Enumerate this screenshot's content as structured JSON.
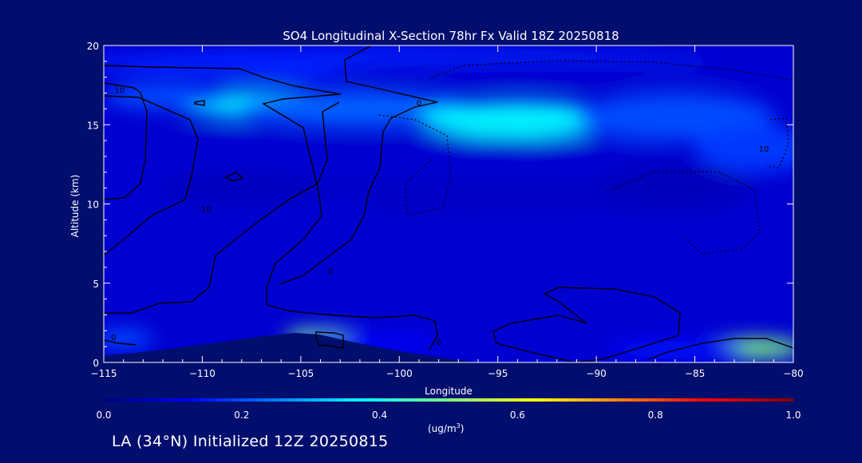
{
  "colors": {
    "background": "#010e6e",
    "contour": "#000000",
    "axis": "#ffffff",
    "colormap": [
      "#00007f",
      "#0000ff",
      "#007fff",
      "#00ffff",
      "#7fff7f",
      "#ffff00",
      "#ff7f00",
      "#ff0000",
      "#7f0000"
    ]
  },
  "footer": {
    "text": "LA (34°N) Initialized 12Z 20250815"
  },
  "chart_data": {
    "type": "heatmap",
    "title": "SO4 Longitudinal X-Section 78hr  Fx Valid 18Z 20250818",
    "xlabel": "Longitude",
    "ylabel": "Altitude (km)",
    "xlim": [
      -115,
      -80
    ],
    "ylim": [
      0,
      20
    ],
    "x_ticks": [
      -115,
      -110,
      -105,
      -100,
      -95,
      -90,
      -85,
      -80
    ],
    "x_tick_labels": [
      "−115",
      "−110",
      "−105",
      "−100",
      "−95",
      "−90",
      "−85",
      "−80"
    ],
    "y_ticks": [
      0,
      5,
      10,
      15,
      20
    ],
    "y_tick_labels": [
      "0",
      "5",
      "10",
      "15",
      "20"
    ],
    "colorbar": {
      "min": 0.0,
      "max": 1.0,
      "ticks": [
        0.0,
        0.2,
        0.4,
        0.6,
        0.8,
        1.0
      ],
      "tick_labels": [
        "0.0",
        "0.2",
        "0.4",
        "0.6",
        "0.8",
        "1.0"
      ],
      "unit_label": "(ug/m",
      "unit_exponent": "3",
      "unit_close": ")"
    },
    "background_value": 0.08,
    "field_blobs": [
      {
        "lon": -100,
        "alt": 18.8,
        "rlon": 16,
        "ralt": 1.0,
        "v": 0.16
      },
      {
        "lon": -92,
        "alt": 18.3,
        "rlon": 12,
        "ralt": 0.7,
        "v": 0.08
      },
      {
        "lon": -107,
        "alt": 16.3,
        "rlon": 4.5,
        "ralt": 0.9,
        "v": 0.34
      },
      {
        "lon": -102,
        "alt": 16.0,
        "rlon": 6,
        "ralt": 1.1,
        "v": 0.22
      },
      {
        "lon": -94,
        "alt": 15.3,
        "rlon": 5,
        "ralt": 1.2,
        "v": 0.36
      },
      {
        "lon": -86,
        "alt": 15.5,
        "rlon": 5,
        "ralt": 1.5,
        "v": 0.2
      },
      {
        "lon": -112,
        "alt": 16.8,
        "rlon": 3,
        "ralt": 0.8,
        "v": 0.2
      },
      {
        "lon": -82,
        "alt": 13.5,
        "rlon": 3,
        "ralt": 1.5,
        "v": 0.18
      },
      {
        "lon": -98,
        "alt": 13.0,
        "rlon": 12,
        "ralt": 1.2,
        "v": 0.08
      },
      {
        "lon": -108,
        "alt": 13.5,
        "rlon": 4,
        "ralt": 1.2,
        "v": 0.08
      },
      {
        "lon": -96,
        "alt": 10.5,
        "rlon": 10,
        "ralt": 1.3,
        "v": 0.07
      },
      {
        "lon": -104,
        "alt": 9.5,
        "rlon": 3,
        "ralt": 1.0,
        "v": 0.08
      },
      {
        "lon": -108,
        "alt": 11.0,
        "rlon": 4,
        "ralt": 1.0,
        "v": 0.06
      },
      {
        "lon": -86,
        "alt": 11.0,
        "rlon": 4,
        "ralt": 1.5,
        "v": 0.06
      },
      {
        "lon": -114,
        "alt": 1.5,
        "rlon": 1.5,
        "ralt": 0.6,
        "v": 0.2
      },
      {
        "lon": -104,
        "alt": 1.6,
        "rlon": 1.8,
        "ralt": 0.5,
        "v": 0.5
      },
      {
        "lon": -103.8,
        "alt": 1.4,
        "rlon": 0.8,
        "ralt": 0.3,
        "v": 0.22
      },
      {
        "lon": -101,
        "alt": 1.2,
        "rlon": 3,
        "ralt": 0.6,
        "v": 0.12
      },
      {
        "lon": -82,
        "alt": 0.9,
        "rlon": 2.5,
        "ralt": 0.6,
        "v": 0.5
      },
      {
        "lon": -86,
        "alt": 0.8,
        "rlon": 3.5,
        "ralt": 0.6,
        "v": 0.14
      }
    ],
    "contour_labels": [
      {
        "text": "10",
        "lon": -114.2,
        "alt": 17.0
      },
      {
        "text": "0",
        "lon": -99,
        "alt": 16.2
      },
      {
        "text": "10",
        "lon": -81.5,
        "alt": 13.3
      },
      {
        "text": "10",
        "lon": -109.8,
        "alt": 9.5
      },
      {
        "text": "0",
        "lon": -103.5,
        "alt": 5.6
      },
      {
        "text": "0",
        "lon": -114.5,
        "alt": 1.4
      },
      {
        "text": "0",
        "lon": -98,
        "alt": 1.1
      }
    ]
  }
}
